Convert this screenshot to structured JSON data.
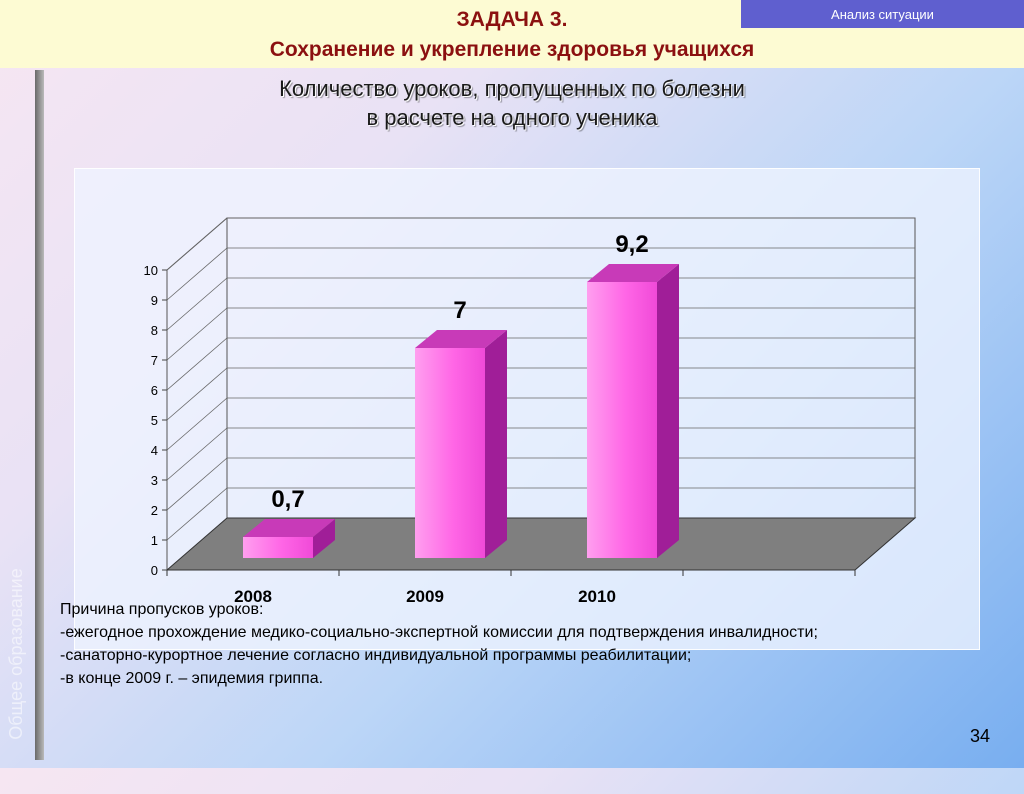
{
  "header": {
    "tag": "Анализ ситуации",
    "task_title": "ЗАДАЧА 3.",
    "task_subtitle": "Сохранение и укрепление здоровья учащихся"
  },
  "sidebar_text": "Общее образование",
  "chart_data": {
    "type": "bar",
    "title_line1": "Количество уроков, пропущенных по болезни",
    "title_line2": "в расчете на одного ученика",
    "categories": [
      "2008",
      "2009",
      "2010"
    ],
    "values": [
      0.7,
      7,
      9.2
    ],
    "value_labels": [
      "0,7",
      "7",
      "9,2"
    ],
    "yticks": [
      "0",
      "1",
      "2",
      "3",
      "4",
      "5",
      "6",
      "7",
      "8",
      "9",
      "10"
    ],
    "ylim": [
      0,
      10
    ],
    "grid": true,
    "three_d": true,
    "bar_color": "#ff5fe2",
    "bar_side_color": "#a01e98",
    "floor_color": "#7f7f7f"
  },
  "notes": {
    "heading": "Причина пропусков  уроков:",
    "items": [
      "-ежегодное прохождение медико-социально-экспертной комиссии  для подтверждения инвалидности;",
      "-санаторно-курортное лечение согласно индивидуальной программы реабилитации;",
      "-в конце 2009 г. – эпидемия гриппа."
    ]
  },
  "page_number": "34"
}
